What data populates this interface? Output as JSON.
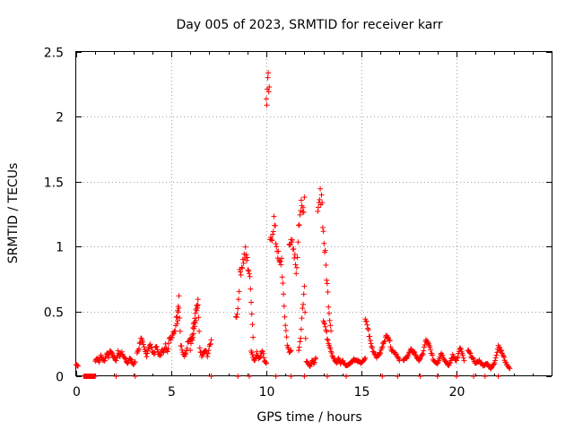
{
  "chart_data": {
    "type": "scatter",
    "title": "Day 005 of 2023, SRMTID for receiver karr",
    "xlabel": "GPS time / hours",
    "ylabel": "SRMTID / TECUs",
    "xlim": [
      0,
      25
    ],
    "ylim": [
      0,
      2.5
    ],
    "x_ticks": [
      0,
      5,
      10,
      15,
      20
    ],
    "x_tick_labels": [
      "0",
      "5",
      "10",
      "15",
      "20"
    ],
    "y_ticks": [
      0,
      0.5,
      1,
      1.5,
      2,
      2.5
    ],
    "y_tick_labels": [
      "0",
      "0.5",
      "1",
      "1.5",
      "2",
      "2.5"
    ],
    "grid": true,
    "marker": "+",
    "color": "#ff0000",
    "series": [
      {
        "name": "SRMTID",
        "segments": [
          {
            "x": [
              0.0,
              0.1
            ],
            "y": [
              0.09,
              0.08
            ]
          },
          {
            "x": [
              0.4,
              0.5,
              0.6,
              0.7,
              0.8,
              0.9,
              1.0
            ],
            "y": [
              0.0,
              0.0,
              0.0,
              0.0,
              0.0,
              0.0,
              0.0
            ]
          },
          {
            "x": [
              1.0,
              1.1,
              1.2,
              1.3,
              1.4,
              1.5,
              1.6,
              1.7,
              1.8,
              1.9,
              2.0,
              2.1,
              2.2,
              2.3,
              2.4,
              2.5,
              2.6,
              2.7,
              2.8,
              2.9,
              3.0,
              3.1
            ],
            "y": [
              0.12,
              0.14,
              0.11,
              0.16,
              0.13,
              0.12,
              0.18,
              0.15,
              0.2,
              0.17,
              0.14,
              0.12,
              0.19,
              0.16,
              0.18,
              0.15,
              0.13,
              0.1,
              0.14,
              0.12,
              0.09,
              0.11
            ]
          },
          {
            "x": [
              2.1
            ],
            "y": [
              0.0
            ]
          },
          {
            "x": [
              3.1
            ],
            "y": [
              0.0
            ]
          },
          {
            "x": [
              3.2,
              3.3,
              3.4,
              3.5,
              3.6,
              3.7,
              3.8,
              3.9,
              4.0,
              4.1,
              4.2,
              4.3,
              4.4,
              4.5,
              4.6,
              4.7,
              4.8,
              4.9,
              5.0,
              5.1,
              5.2,
              5.3,
              5.4
            ],
            "y": [
              0.18,
              0.22,
              0.3,
              0.25,
              0.2,
              0.16,
              0.22,
              0.24,
              0.2,
              0.17,
              0.23,
              0.19,
              0.15,
              0.21,
              0.18,
              0.24,
              0.2,
              0.28,
              0.3,
              0.34,
              0.36,
              0.48,
              0.62
            ]
          },
          {
            "x": [
              5.3,
              5.4,
              5.5,
              5.6,
              5.7,
              5.8,
              5.9,
              6.0,
              6.1,
              6.2,
              6.3,
              6.4
            ],
            "y": [
              0.4,
              0.55,
              0.25,
              0.18,
              0.15,
              0.2,
              0.28,
              0.3,
              0.28,
              0.35,
              0.45,
              0.55
            ]
          },
          {
            "x": [
              6.0,
              6.1,
              6.2,
              6.3,
              6.4,
              6.5,
              6.6,
              6.7,
              6.8,
              6.9,
              7.0,
              7.1
            ],
            "y": [
              0.2,
              0.32,
              0.42,
              0.5,
              0.56,
              0.22,
              0.15,
              0.18,
              0.2,
              0.16,
              0.22,
              0.28
            ]
          },
          {
            "x": [
              7.1
            ],
            "y": [
              0.0
            ]
          },
          {
            "x": [
              8.4,
              8.5,
              8.6,
              8.7,
              8.8,
              8.9,
              9.0,
              9.1,
              9.2,
              9.3
            ],
            "y": [
              0.45,
              0.52,
              0.78,
              0.85,
              0.9,
              0.95,
              0.88,
              0.8,
              0.6,
              0.3
            ]
          },
          {
            "x": [
              9.2,
              9.3,
              9.4,
              9.5,
              9.6,
              9.7,
              9.8,
              9.9,
              10.0
            ],
            "y": [
              0.2,
              0.15,
              0.12,
              0.18,
              0.14,
              0.16,
              0.2,
              0.12,
              0.1
            ]
          },
          {
            "x": [
              8.5
            ],
            "y": [
              0.0
            ]
          },
          {
            "x": [
              9.1
            ],
            "y": [
              0.0
            ]
          },
          {
            "x": [
              10.0,
              10.05,
              10.1,
              10.15
            ],
            "y": [
              2.14,
              2.18,
              2.22,
              2.23
            ]
          },
          {
            "x": [
              10.2,
              10.3,
              10.4,
              10.5,
              10.6,
              10.7,
              10.8,
              10.9,
              11.0,
              11.1,
              11.2,
              11.3
            ],
            "y": [
              1.0,
              1.1,
              1.2,
              1.05,
              0.95,
              0.85,
              0.9,
              0.6,
              0.4,
              0.25,
              0.18,
              0.2
            ]
          },
          {
            "x": [
              10.5
            ],
            "y": [
              0.0
            ]
          },
          {
            "x": [
              11.2,
              11.3,
              11.4,
              11.5,
              11.6,
              11.7,
              11.8,
              11.9,
              12.0
            ],
            "y": [
              1.0,
              1.1,
              0.95,
              0.9,
              0.8,
              1.2,
              1.3,
              1.25,
              1.38
            ]
          },
          {
            "x": [
              11.7,
              11.8,
              11.9,
              12.0,
              12.1,
              12.2,
              12.3,
              12.4,
              12.5,
              12.6
            ],
            "y": [
              0.2,
              0.3,
              0.52,
              0.68,
              0.12,
              0.1,
              0.08,
              0.12,
              0.1,
              0.14
            ]
          },
          {
            "x": [
              11.3
            ],
            "y": [
              0.0
            ]
          },
          {
            "x": [
              12.0
            ],
            "y": [
              0.0
            ]
          },
          {
            "x": [
              12.7,
              12.8,
              12.9,
              13.0,
              13.1,
              13.2,
              13.3,
              13.4
            ],
            "y": [
              1.2,
              1.35,
              1.43,
              1.1,
              0.92,
              0.7,
              0.5,
              0.35
            ]
          },
          {
            "x": [
              13.0,
              13.1,
              13.2,
              13.3,
              13.4,
              13.5,
              13.6,
              13.7,
              13.8,
              13.9,
              14.0,
              14.2,
              14.4,
              14.6,
              14.8,
              15.0,
              15.2
            ],
            "y": [
              0.45,
              0.38,
              0.3,
              0.25,
              0.2,
              0.15,
              0.12,
              0.1,
              0.14,
              0.1,
              0.12,
              0.08,
              0.1,
              0.13,
              0.12,
              0.1,
              0.14
            ]
          },
          {
            "x": [
              13.2
            ],
            "y": [
              0.0
            ]
          },
          {
            "x": [
              14.2
            ],
            "y": [
              0.0
            ]
          },
          {
            "x": [
              15.2,
              15.3,
              15.4,
              15.5,
              15.6,
              15.8,
              16.0,
              16.2,
              16.4,
              16.6,
              16.8,
              17.0
            ],
            "y": [
              0.42,
              0.4,
              0.32,
              0.25,
              0.2,
              0.15,
              0.18,
              0.28,
              0.32,
              0.2,
              0.18,
              0.12
            ]
          },
          {
            "x": [
              16.1
            ],
            "y": [
              0.0
            ]
          },
          {
            "x": [
              16.9
            ],
            "y": [
              0.0
            ]
          },
          {
            "x": [
              17.2,
              17.4,
              17.6,
              17.8,
              18.0,
              18.2,
              18.4,
              18.6,
              18.8,
              19.0,
              19.2,
              19.4,
              19.6,
              19.8,
              20.0,
              20.2,
              20.4
            ],
            "y": [
              0.12,
              0.15,
              0.2,
              0.18,
              0.12,
              0.16,
              0.28,
              0.22,
              0.12,
              0.1,
              0.18,
              0.12,
              0.08,
              0.16,
              0.12,
              0.22,
              0.12
            ]
          },
          {
            "x": [
              18.1
            ],
            "y": [
              0.0
            ]
          },
          {
            "x": [
              19.0
            ],
            "y": [
              0.0
            ]
          },
          {
            "x": [
              20.0
            ],
            "y": [
              0.0
            ]
          },
          {
            "x": [
              20.6,
              20.8,
              21.0,
              21.2,
              21.4,
              21.6,
              21.8,
              22.0,
              22.2,
              22.4,
              22.6,
              22.8
            ],
            "y": [
              0.2,
              0.15,
              0.1,
              0.12,
              0.08,
              0.1,
              0.06,
              0.1,
              0.24,
              0.18,
              0.1,
              0.06
            ]
          },
          {
            "x": [
              20.9
            ],
            "y": [
              0.0
            ]
          },
          {
            "x": [
              21.5
            ],
            "y": [
              0.0
            ]
          },
          {
            "x": [
              22.2
            ],
            "y": [
              0.0
            ]
          }
        ]
      }
    ]
  }
}
